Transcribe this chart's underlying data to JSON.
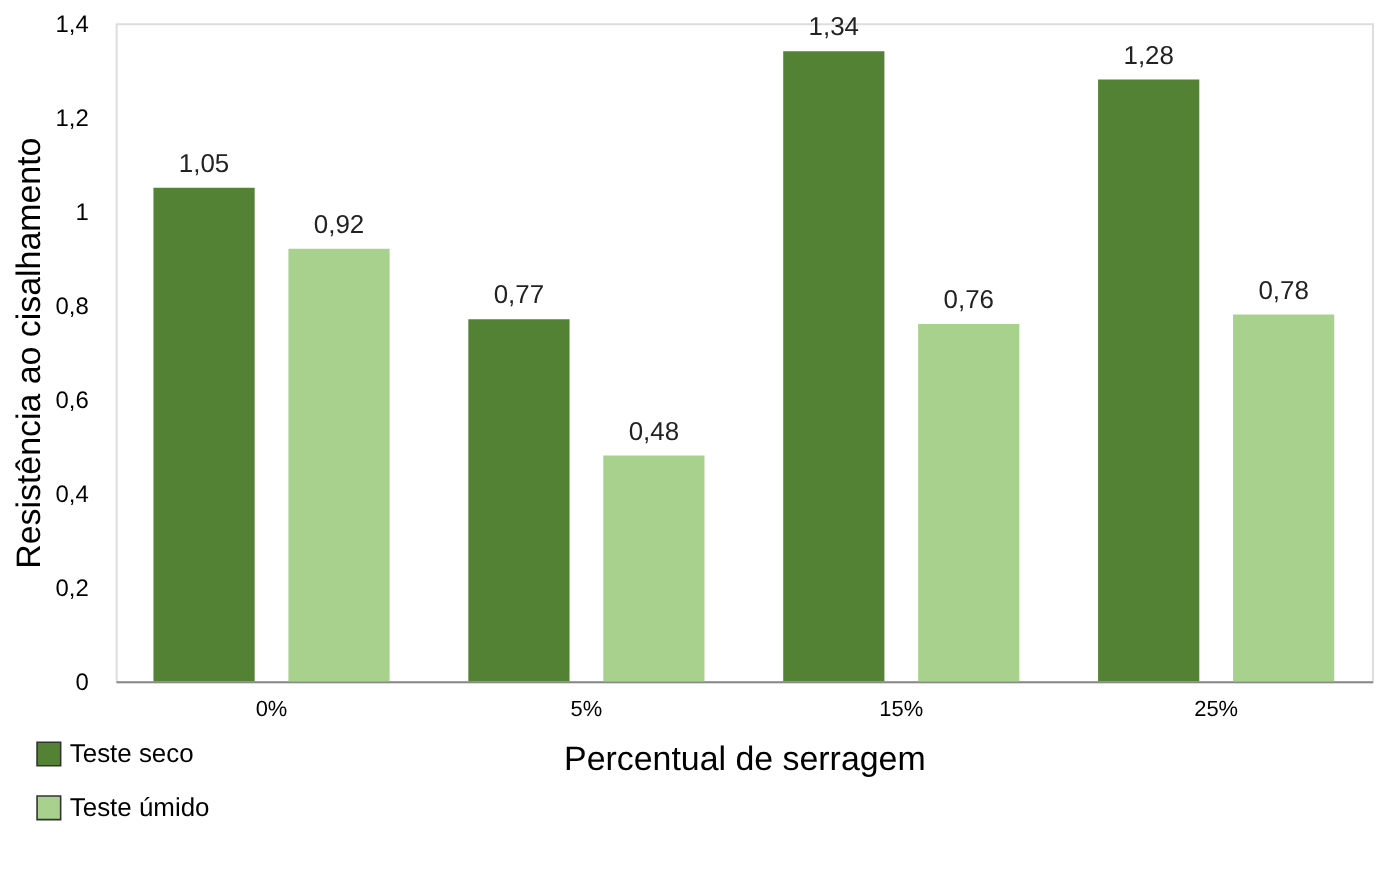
{
  "chart_data": {
    "type": "bar",
    "xlabel": "Percentual de serragem",
    "ylabel": "Resistência ao cisalhamento",
    "categories": [
      "0%",
      "5%",
      "15%",
      "25%"
    ],
    "series": [
      {
        "name": "Teste seco",
        "color": "#548235",
        "values": [
          1.05,
          0.77,
          1.34,
          1.28
        ],
        "value_labels": [
          "1,05",
          "0,77",
          "1,34",
          "1,28"
        ]
      },
      {
        "name": "Teste úmido",
        "color": "#a9d18e",
        "values": [
          0.92,
          0.48,
          0.76,
          0.78
        ],
        "value_labels": [
          "0,92",
          "0,48",
          "0,76",
          "0,78"
        ]
      }
    ],
    "ylim": [
      0,
      1.4
    ],
    "yticks": [
      0,
      {
        "value": 0.2,
        "label": "0,2"
      },
      {
        "value": 0.4,
        "label": "0,4"
      },
      {
        "value": 0.6,
        "label": "0,6"
      },
      {
        "value": 0.8,
        "label": "0,8"
      },
      1,
      {
        "value": 1.2,
        "label": "1,2"
      },
      {
        "value": 1.4,
        "label": "1,4"
      }
    ],
    "grid": false,
    "legend": "bottom left"
  }
}
